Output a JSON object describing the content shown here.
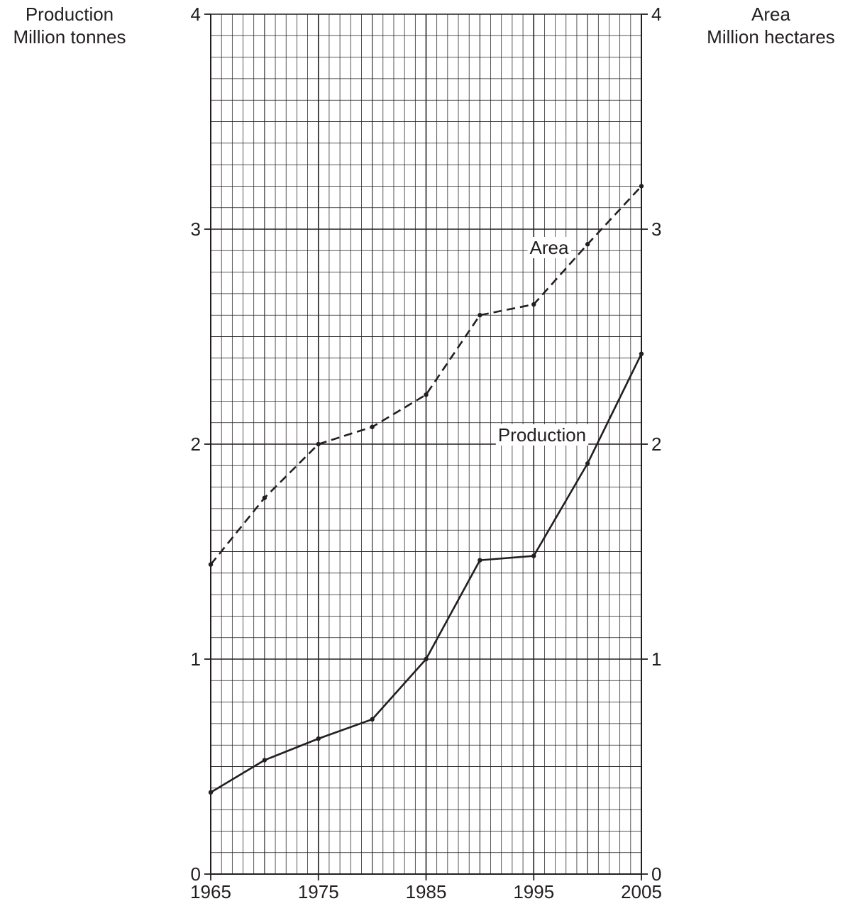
{
  "chart_data": {
    "type": "line",
    "title": "",
    "left_axis_label": [
      "Production",
      "Million tonnes"
    ],
    "right_axis_label": [
      "Area",
      "Million hectares"
    ],
    "x": [
      1965,
      1970,
      1975,
      1980,
      1985,
      1990,
      1995,
      2000,
      2005
    ],
    "xlim": [
      1965,
      2005
    ],
    "x_tick_labels": [
      "1965",
      "1975",
      "1985",
      "1995",
      "2005"
    ],
    "ylim": [
      0,
      4
    ],
    "y_tick_labels": [
      "0",
      "1",
      "2",
      "3",
      "4"
    ],
    "grid": true,
    "series": [
      {
        "name": "Area",
        "axis": "right",
        "style": "dashed",
        "values": [
          1.44,
          1.75,
          2.0,
          2.08,
          2.23,
          2.6,
          2.65,
          2.93,
          3.2
        ]
      },
      {
        "name": "Production",
        "axis": "left",
        "style": "solid",
        "values": [
          0.38,
          0.53,
          0.63,
          0.72,
          1.0,
          1.46,
          1.48,
          1.91,
          2.42
        ]
      }
    ]
  }
}
